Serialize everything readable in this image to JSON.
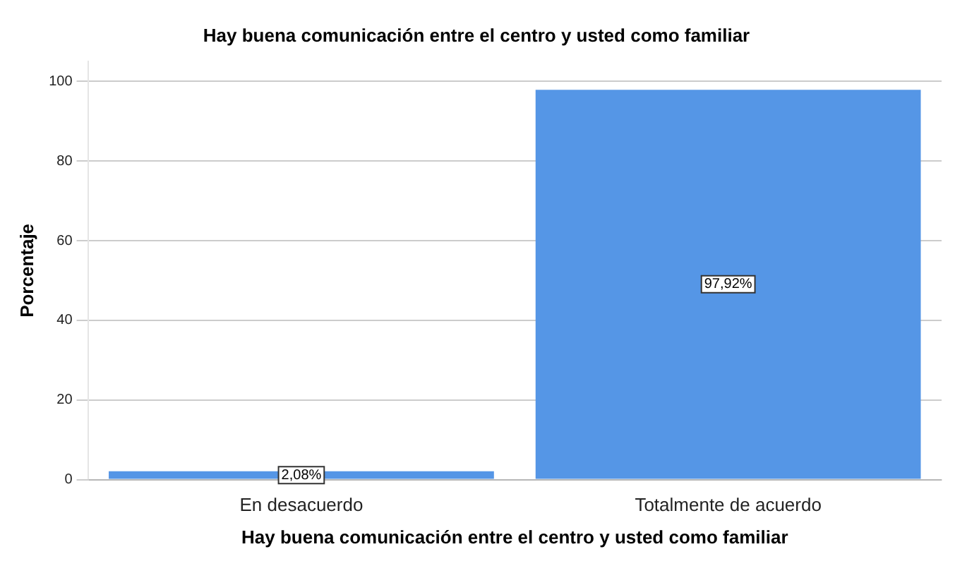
{
  "chart_data": {
    "type": "bar",
    "title": "Hay buena comunicación entre el centro y usted como familiar",
    "xlabel": "Hay buena comunicación entre el centro y usted como familiar",
    "ylabel": "Porcentaje",
    "categories": [
      "En desacuerdo",
      "Totalmente de acuerdo"
    ],
    "values": [
      2.08,
      97.92
    ],
    "value_labels": [
      "2,08%",
      "97,92%"
    ],
    "color": "#5596e6",
    "ylim": [
      0,
      105
    ],
    "yticks": [
      0,
      20,
      40,
      60,
      80,
      100
    ],
    "grid": "y",
    "legend": false
  }
}
